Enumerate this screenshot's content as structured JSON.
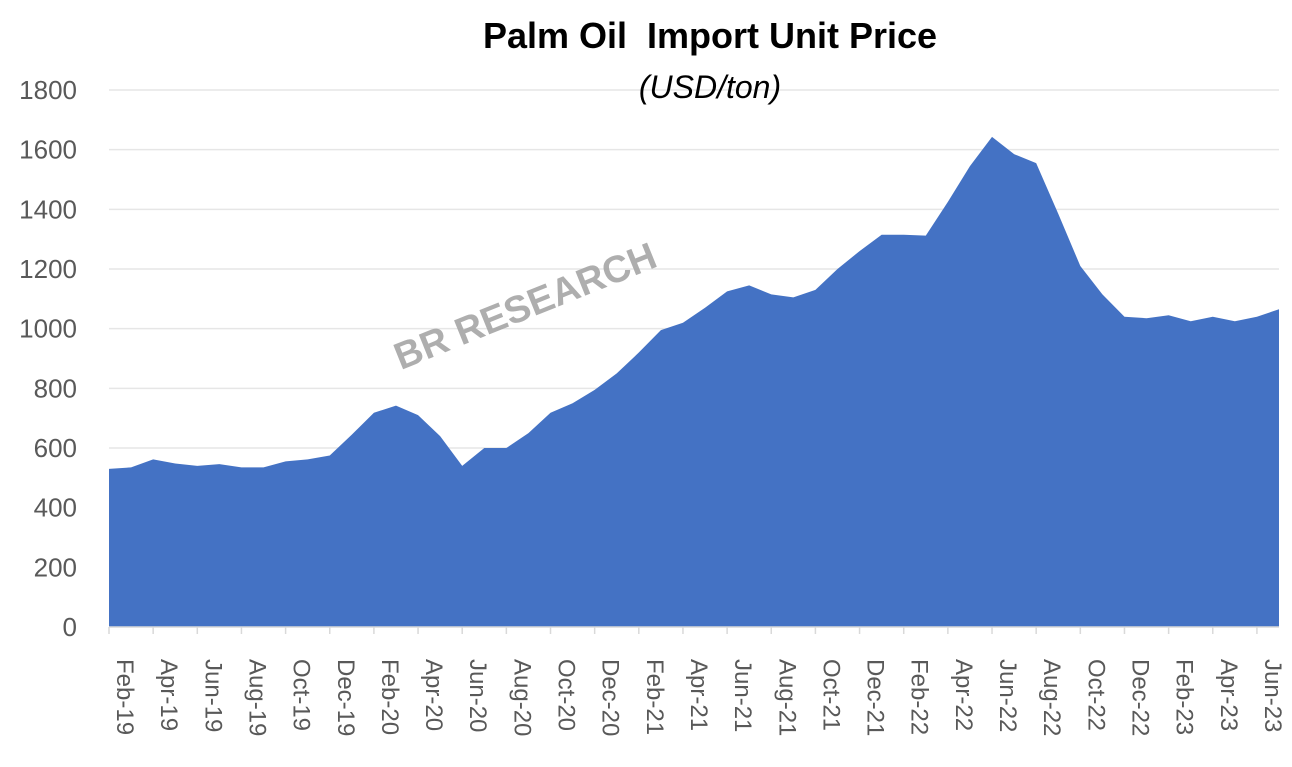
{
  "chart_data": {
    "type": "area",
    "title": "Palm Oil  Import Unit Price",
    "subtitle": "(USD/ton)",
    "xlabel": "",
    "ylabel": "",
    "ylim": [
      0,
      1800
    ],
    "yticks": [
      0,
      200,
      400,
      600,
      800,
      1000,
      1200,
      1400,
      1600,
      1800
    ],
    "grid": true,
    "legend": "none",
    "watermark": "BR RESEARCH",
    "series_color": "#4472C4",
    "x": [
      "Feb-19",
      "Mar-19",
      "Apr-19",
      "May-19",
      "Jun-19",
      "Jul-19",
      "Aug-19",
      "Sep-19",
      "Oct-19",
      "Nov-19",
      "Dec-19",
      "Jan-20",
      "Feb-20",
      "Mar-20",
      "Apr-20",
      "May-20",
      "Jun-20",
      "Jul-20",
      "Aug-20",
      "Sep-20",
      "Oct-20",
      "Nov-20",
      "Dec-20",
      "Jan-21",
      "Feb-21",
      "Mar-21",
      "Apr-21",
      "May-21",
      "Jun-21",
      "Jul-21",
      "Aug-21",
      "Sep-21",
      "Oct-21",
      "Nov-21",
      "Dec-21",
      "Jan-22",
      "Feb-22",
      "Mar-22",
      "Apr-22",
      "May-22",
      "Jun-22",
      "Jul-22",
      "Aug-22",
      "Sep-22",
      "Oct-22",
      "Nov-22",
      "Dec-22",
      "Jan-23",
      "Feb-23",
      "Mar-23",
      "Apr-23",
      "May-23",
      "Jun-23",
      "Jul-23"
    ],
    "x_tick_labels": [
      "Feb-19",
      "Apr-19",
      "Jun-19",
      "Aug-19",
      "Oct-19",
      "Dec-19",
      "Feb-20",
      "Apr-20",
      "Jun-20",
      "Aug-20",
      "Oct-20",
      "Dec-20",
      "Feb-21",
      "Apr-21",
      "Jun-21",
      "Aug-21",
      "Oct-21",
      "Dec-21",
      "Feb-22",
      "Apr-22",
      "Jun-22",
      "Aug-22",
      "Oct-22",
      "Dec-22",
      "Feb-23",
      "Apr-23",
      "Jun-23"
    ],
    "series": [
      {
        "values": [
          530,
          535,
          562,
          548,
          540,
          546,
          535,
          535,
          555,
          562,
          575,
          645,
          718,
          742,
          710,
          640,
          540,
          600,
          600,
          650,
          718,
          750,
          795,
          850,
          920,
          995,
          1020,
          1070,
          1125,
          1145,
          1115,
          1105,
          1130,
          1200,
          1260,
          1315,
          1315,
          1312,
          1425,
          1545,
          1643,
          1585,
          1555,
          1385,
          1210,
          1115,
          1040,
          1035,
          1045,
          1025,
          1040,
          1025,
          1040,
          1065
        ]
      }
    ]
  }
}
